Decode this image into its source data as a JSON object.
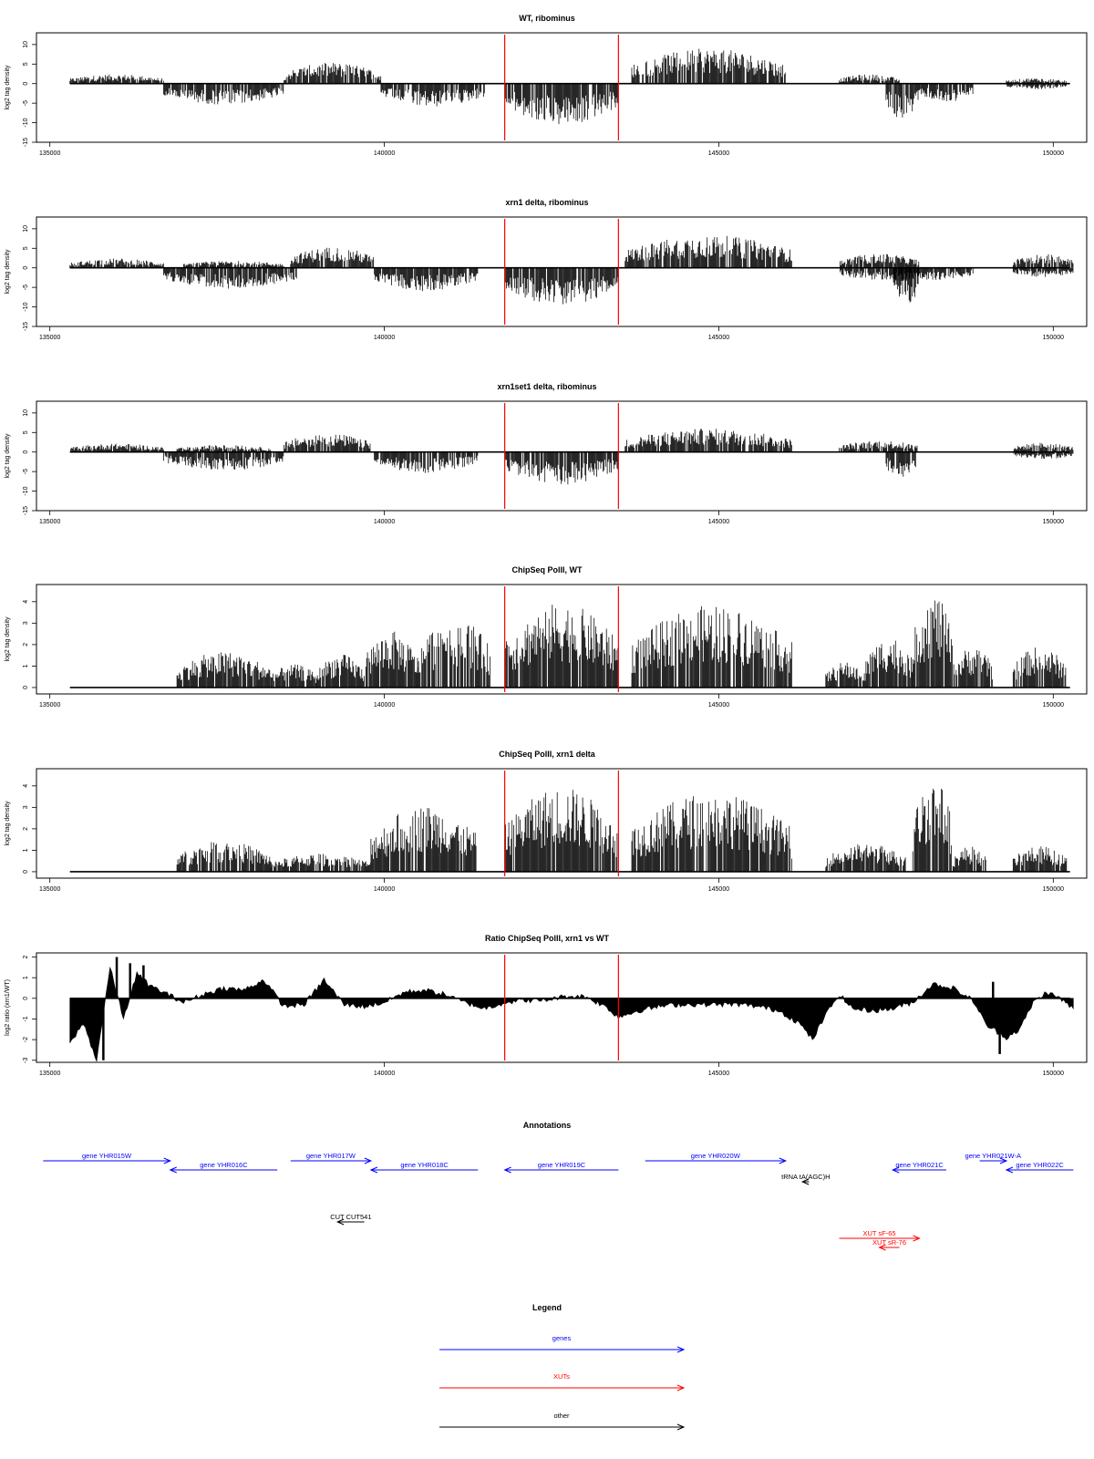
{
  "chart_data": [
    {
      "type": "bar",
      "title": "WT, ribominus",
      "ylabel": "log2 tag density",
      "xlim": [
        134800,
        150500
      ],
      "ylim": [
        -15,
        13
      ],
      "yticks": [
        -15,
        -10,
        -5,
        0,
        5,
        10
      ],
      "xticks": [
        135000,
        140000,
        145000,
        150000
      ],
      "markers": [
        141800,
        143500
      ],
      "segments": [
        {
          "x": [
            135300,
            136700
          ],
          "sign": 1,
          "amp": 2
        },
        {
          "x": [
            136700,
            138500
          ],
          "sign": -1,
          "amp": 4.5
        },
        {
          "x": [
            138500,
            139950
          ],
          "sign": 1,
          "amp": 4.5
        },
        {
          "x": [
            139950,
            141500
          ],
          "sign": -1,
          "amp": 5
        },
        {
          "x": [
            141800,
            143500
          ],
          "sign": -1,
          "amp": 9
        },
        {
          "x": [
            143700,
            146000
          ],
          "sign": 1,
          "amp": 7.5
        },
        {
          "x": [
            146800,
            147700
          ],
          "sign": 1,
          "amp": 2
        },
        {
          "x": [
            147500,
            148000
          ],
          "sign": -1,
          "amp": 8
        },
        {
          "x": [
            148000,
            148800
          ],
          "sign": -1,
          "amp": 4
        },
        {
          "x": [
            149300,
            150200
          ],
          "sign": 1,
          "amp": 1.2
        },
        {
          "x": [
            149300,
            150200
          ],
          "sign": -1,
          "amp": 1.2
        }
      ]
    },
    {
      "type": "bar",
      "title": "xrn1 delta, ribominus",
      "ylabel": "log2 tag density",
      "xlim": [
        134800,
        150500
      ],
      "ylim": [
        -15,
        13
      ],
      "yticks": [
        -15,
        -10,
        -5,
        0,
        5,
        10
      ],
      "xticks": [
        135000,
        140000,
        145000,
        150000
      ],
      "markers": [
        141800,
        143500
      ],
      "segments": [
        {
          "x": [
            135300,
            136700
          ],
          "sign": 1,
          "amp": 2
        },
        {
          "x": [
            136700,
            138700
          ],
          "sign": -1,
          "amp": 4.5
        },
        {
          "x": [
            137000,
            138500
          ],
          "sign": 1,
          "amp": 1.5
        },
        {
          "x": [
            138600,
            139850
          ],
          "sign": 1,
          "amp": 4.5
        },
        {
          "x": [
            139850,
            141400
          ],
          "sign": -1,
          "amp": 5
        },
        {
          "x": [
            141800,
            143500
          ],
          "sign": -1,
          "amp": 8
        },
        {
          "x": [
            143600,
            146100
          ],
          "sign": 1,
          "amp": 7
        },
        {
          "x": [
            146800,
            148000
          ],
          "sign": 1,
          "amp": 3
        },
        {
          "x": [
            146800,
            148800
          ],
          "sign": -1,
          "amp": 3
        },
        {
          "x": [
            147600,
            148000
          ],
          "sign": -1,
          "amp": 8
        },
        {
          "x": [
            149400,
            150300
          ],
          "sign": 1,
          "amp": 3
        },
        {
          "x": [
            149400,
            150300
          ],
          "sign": -1,
          "amp": 2
        }
      ]
    },
    {
      "type": "bar",
      "title": "xrn1set1 delta, ribominus",
      "ylabel": "log2 tag density",
      "xlim": [
        134800,
        150500
      ],
      "ylim": [
        -15,
        13
      ],
      "yticks": [
        -15,
        -10,
        -5,
        0,
        5,
        10
      ],
      "xticks": [
        135000,
        140000,
        145000,
        150000
      ],
      "markers": [
        141800,
        143500
      ],
      "segments": [
        {
          "x": [
            135300,
            136700
          ],
          "sign": 1,
          "amp": 1.8
        },
        {
          "x": [
            136700,
            138500
          ],
          "sign": -1,
          "amp": 4
        },
        {
          "x": [
            136900,
            138300
          ],
          "sign": 1,
          "amp": 1.5
        },
        {
          "x": [
            138500,
            139800
          ],
          "sign": 1,
          "amp": 4
        },
        {
          "x": [
            139850,
            141400
          ],
          "sign": -1,
          "amp": 4.5
        },
        {
          "x": [
            141800,
            143500
          ],
          "sign": -1,
          "amp": 7
        },
        {
          "x": [
            143600,
            146100
          ],
          "sign": 1,
          "amp": 5
        },
        {
          "x": [
            146800,
            148000
          ],
          "sign": 1,
          "amp": 2.5
        },
        {
          "x": [
            147500,
            147950
          ],
          "sign": -1,
          "amp": 6
        },
        {
          "x": [
            149400,
            150300
          ],
          "sign": 1,
          "amp": 2
        },
        {
          "x": [
            149400,
            150300
          ],
          "sign": -1,
          "amp": 1.5
        }
      ]
    },
    {
      "type": "bar",
      "title": "ChipSeq PolII, WT",
      "ylabel": "log2 tag density",
      "xlim": [
        134800,
        150500
      ],
      "ylim": [
        -0.3,
        4.8
      ],
      "yticks": [
        0,
        1,
        2,
        3,
        4
      ],
      "xticks": [
        135000,
        140000,
        145000,
        150000
      ],
      "markers": [
        141800,
        143500
      ],
      "segments": [
        {
          "x": [
            136900,
            138300
          ],
          "sign": 1,
          "amp": 1.4
        },
        {
          "x": [
            138300,
            139000
          ],
          "sign": 1,
          "amp": 0.9
        },
        {
          "x": [
            139000,
            139700
          ],
          "sign": 1,
          "amp": 1.3
        },
        {
          "x": [
            139700,
            140500
          ],
          "sign": 1,
          "amp": 2.2
        },
        {
          "x": [
            140500,
            141600
          ],
          "sign": 1,
          "amp": 2.8
        },
        {
          "x": [
            141800,
            143500
          ],
          "sign": 1,
          "amp": 3.3
        },
        {
          "x": [
            143700,
            146100
          ],
          "sign": 1,
          "amp": 3.2
        },
        {
          "x": [
            146600,
            147200
          ],
          "sign": 1,
          "amp": 1
        },
        {
          "x": [
            147200,
            147900
          ],
          "sign": 1,
          "amp": 2
        },
        {
          "x": [
            147900,
            148500
          ],
          "sign": 1,
          "amp": 3.7
        },
        {
          "x": [
            148500,
            149100
          ],
          "sign": 1,
          "amp": 1.6
        },
        {
          "x": [
            149400,
            150200
          ],
          "sign": 1,
          "amp": 1.6
        }
      ]
    },
    {
      "type": "bar",
      "title": "ChipSeq PolII, xrn1 delta",
      "ylabel": "log2 tag density",
      "xlim": [
        134800,
        150500
      ],
      "ylim": [
        -0.3,
        4.8
      ],
      "yticks": [
        0,
        1,
        2,
        3,
        4
      ],
      "xticks": [
        135000,
        140000,
        145000,
        150000
      ],
      "markers": [
        141800,
        143500
      ],
      "segments": [
        {
          "x": [
            136900,
            138300
          ],
          "sign": 1,
          "amp": 1.2
        },
        {
          "x": [
            138300,
            139800
          ],
          "sign": 1,
          "amp": 0.7
        },
        {
          "x": [
            139800,
            141400
          ],
          "sign": 1,
          "amp": 2.6
        },
        {
          "x": [
            141800,
            143500
          ],
          "sign": 1,
          "amp": 3.3
        },
        {
          "x": [
            143700,
            146100
          ],
          "sign": 1,
          "amp": 3.1
        },
        {
          "x": [
            146600,
            147800
          ],
          "sign": 1,
          "amp": 1.1
        },
        {
          "x": [
            147900,
            148500
          ],
          "sign": 1,
          "amp": 3.7
        },
        {
          "x": [
            148500,
            149000
          ],
          "sign": 1,
          "amp": 1
        },
        {
          "x": [
            149400,
            150200
          ],
          "sign": 1,
          "amp": 1
        }
      ]
    },
    {
      "type": "area",
      "title": "Ratio ChipSeq PolII, xrn1 vs WT",
      "ylabel": "log2 ratio (xrn1/WT)",
      "xlim": [
        134800,
        150500
      ],
      "ylim": [
        -3.1,
        2.2
      ],
      "yticks": [
        -3,
        -2,
        -1,
        0,
        1,
        2
      ],
      "xticks": [
        135000,
        140000,
        145000,
        150000
      ],
      "markers": [
        141800,
        143500
      ],
      "x": [
        135300,
        135500,
        135700,
        135900,
        136100,
        136300,
        136500,
        136700,
        137000,
        137300,
        137600,
        137900,
        138200,
        138500,
        138800,
        139100,
        139400,
        139700,
        140000,
        140300,
        140600,
        140900,
        141200,
        141500,
        141800,
        142100,
        142400,
        142700,
        143000,
        143300,
        143500,
        143800,
        144100,
        144400,
        144700,
        145000,
        145300,
        145600,
        145900,
        146200,
        146400,
        146600,
        146800,
        147000,
        147300,
        147600,
        147900,
        148200,
        148500,
        148800,
        149000,
        149300,
        149500,
        149700,
        149900,
        150100,
        150300
      ],
      "y": [
        -2.2,
        -1.2,
        -3,
        1.5,
        -1,
        1.2,
        0.6,
        0.3,
        -0.2,
        0.2,
        0.5,
        0.4,
        0.9,
        -0.4,
        -0.3,
        0.9,
        -0.3,
        -0.4,
        -0.2,
        0.3,
        0.4,
        0.2,
        -0.2,
        -0.5,
        -0.2,
        -0.1,
        -0.1,
        0.1,
        0.1,
        -0.4,
        -0.9,
        -0.6,
        -0.4,
        -0.3,
        -0.3,
        -0.3,
        -0.3,
        -0.4,
        -0.6,
        -1.2,
        -2,
        -0.8,
        0.2,
        -0.5,
        -0.6,
        -0.5,
        -0.2,
        0.7,
        0.5,
        -0.1,
        -1.3,
        -1.9,
        -1.5,
        -0.2,
        0.3,
        0,
        -0.5
      ]
    }
  ],
  "annotations": {
    "title": "Annotations",
    "items": [
      {
        "label": "gene YHR015W",
        "x1": 134900,
        "x2": 136800,
        "dir": "right",
        "color": "#0000ff",
        "row": 0
      },
      {
        "label": "gene YHR016C",
        "x1": 136800,
        "x2": 138400,
        "dir": "left",
        "color": "#0000ff",
        "row": 1
      },
      {
        "label": "gene YHR017W",
        "x1": 138600,
        "x2": 139800,
        "dir": "right",
        "color": "#0000ff",
        "row": 0
      },
      {
        "label": "gene YHR018C",
        "x1": 139800,
        "x2": 141400,
        "dir": "left",
        "color": "#0000ff",
        "row": 1
      },
      {
        "label": "gene YHR019C",
        "x1": 141800,
        "x2": 143500,
        "dir": "left",
        "color": "#0000ff",
        "row": 1
      },
      {
        "label": "gene YHR020W",
        "x1": 143900,
        "x2": 146000,
        "dir": "right",
        "color": "#0000ff",
        "row": 0
      },
      {
        "label": "tRNA tA(AGC)H",
        "x1": 146250,
        "x2": 146350,
        "dir": "left",
        "color": "#000000",
        "row": 2
      },
      {
        "label": "gene YHR021C",
        "x1": 147600,
        "x2": 148400,
        "dir": "left",
        "color": "#0000ff",
        "row": 1
      },
      {
        "label": "gene YHR021W-A",
        "x1": 148900,
        "x2": 149300,
        "dir": "right",
        "color": "#0000ff",
        "row": 0
      },
      {
        "label": "gene YHR022C",
        "x1": 149300,
        "x2": 150300,
        "dir": "left",
        "color": "#0000ff",
        "row": 1
      },
      {
        "label": "CUT CUT541",
        "x1": 139300,
        "x2": 139700,
        "dir": "left",
        "color": "#000000",
        "row": 3
      },
      {
        "label": "XUT sF-65",
        "x1": 146800,
        "x2": 148000,
        "dir": "right",
        "color": "#ff0000",
        "row": 4
      },
      {
        "label": "XUT sR-76",
        "x1": 147400,
        "x2": 147700,
        "dir": "left",
        "color": "#ff0000",
        "row": 5
      }
    ]
  },
  "legend": {
    "title": "Legend",
    "items": [
      {
        "label": "genes",
        "color": "#0000ff"
      },
      {
        "label": "XUTs",
        "color": "#ff0000"
      },
      {
        "label": "other",
        "color": "#000000"
      }
    ]
  }
}
